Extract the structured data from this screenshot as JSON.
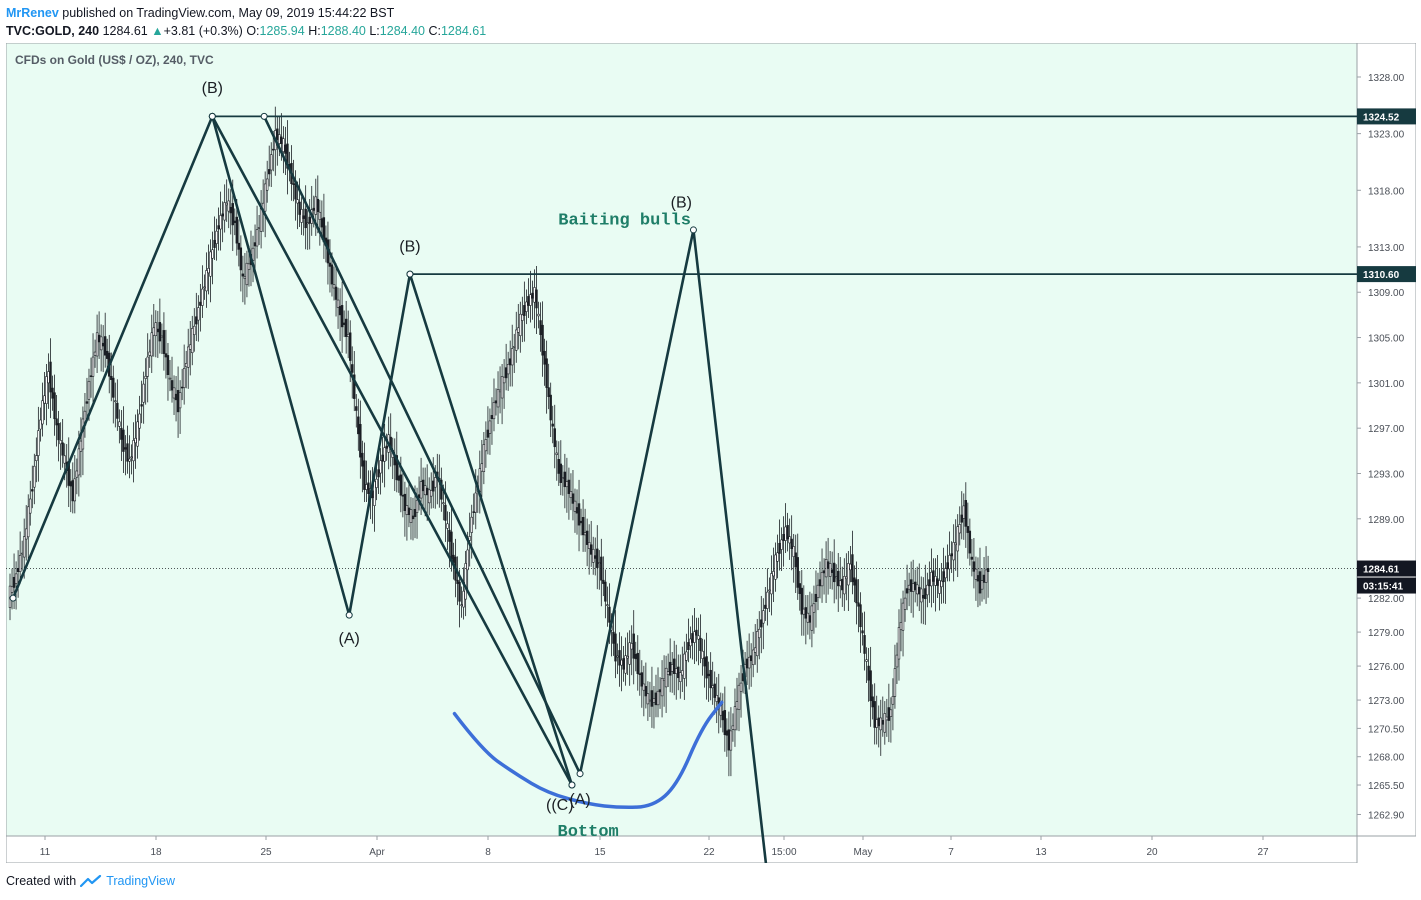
{
  "header": {
    "author": "MrRenev",
    "published": "published on TradingView.com, May 09, 2019 15:44:22 BST",
    "symbol": "TVC:GOLD, 240",
    "last": "1284.61",
    "change_arrow": "▲",
    "change": "+3.81 (+0.3%)",
    "o_label": "O:",
    "o_val": "1285.94",
    "h_label": "H:",
    "h_val": "1288.40",
    "l_label": "L:",
    "l_val": "1284.40",
    "c_label": "C:",
    "c_val": "1284.61"
  },
  "footer": {
    "created": "Created with",
    "brand": "TradingView"
  },
  "colors": {
    "background": "#e9fcf3",
    "line": "#163a40",
    "arc": "#3d6fd8",
    "annotation": "#1f7e68",
    "up": "#26a69a"
  },
  "chart_data": {
    "type": "candlestick",
    "title": "CFDs on Gold (US$ / OZ), 240, TVC",
    "x_ticks": [
      "11",
      "18",
      "25",
      "Apr",
      "8",
      "15",
      "22",
      "15:00",
      "May",
      "7",
      "13",
      "20",
      "27"
    ],
    "y_ticks": [
      "1328.00",
      "1323.00",
      "1318.00",
      "1313.00",
      "1309.00",
      "1305.00",
      "1301.00",
      "1297.00",
      "1293.00",
      "1289.00",
      "1282.00",
      "1279.00",
      "1276.00",
      "1273.00",
      "1270.50",
      "1268.00",
      "1265.50",
      "1262.90"
    ],
    "ylim": [
      1261,
      1331
    ],
    "price_labels": [
      {
        "label": "1324.52",
        "value": 1324.52,
        "style": "line"
      },
      {
        "label": "1310.60",
        "value": 1310.6,
        "style": "line"
      },
      {
        "label": "1284.61",
        "value": 1284.61,
        "style": "last"
      }
    ],
    "countdown": "03:15:41",
    "close_series": [
      1284,
      1287,
      1292,
      1298,
      1302,
      1297,
      1294,
      1291,
      1296,
      1301,
      1305,
      1304,
      1300,
      1296,
      1294,
      1297,
      1302,
      1306,
      1305,
      1301,
      1299,
      1303,
      1306,
      1309,
      1312,
      1315,
      1317,
      1315,
      1310,
      1312,
      1315,
      1319,
      1323,
      1322,
      1319,
      1316,
      1315,
      1317,
      1314,
      1310,
      1307,
      1305,
      1298,
      1292,
      1291,
      1294,
      1296,
      1293,
      1290,
      1289,
      1292,
      1291,
      1293,
      1289,
      1285,
      1281,
      1288,
      1292,
      1296,
      1299,
      1301,
      1303,
      1306,
      1308,
      1309,
      1304,
      1298,
      1293,
      1292,
      1290,
      1288,
      1286,
      1285,
      1281,
      1277,
      1276,
      1278,
      1275,
      1273,
      1273,
      1275,
      1276,
      1275,
      1278,
      1279,
      1276,
      1274,
      1272,
      1269,
      1273,
      1276,
      1277,
      1280,
      1283,
      1286,
      1288,
      1286,
      1281,
      1280,
      1283,
      1285,
      1284,
      1283,
      1285,
      1281,
      1276,
      1271,
      1271,
      1272,
      1279,
      1283,
      1283,
      1282,
      1284,
      1283,
      1285,
      1287,
      1290,
      1285,
      1283,
      1284.61
    ],
    "wave_lines": [
      {
        "points": [
          [
            0,
            1282
          ],
          [
            24.6,
            1324.52
          ],
          [
            41.5,
            1280.5
          ],
          [
            49,
            1310.6
          ],
          [
            69,
            1265.5
          ]
        ]
      },
      {
        "points": [
          [
            24.6,
            1324.52
          ],
          [
            69,
            1265.5
          ]
        ]
      },
      {
        "points": [
          [
            31,
            1324.52
          ],
          [
            70,
            1266.5
          ],
          [
            84,
            1314.5
          ],
          [
            94,
            1252
          ]
        ]
      }
    ],
    "horizontal_lines": [
      {
        "from_x": 24.6,
        "value": 1324.52
      },
      {
        "from_x": 49,
        "value": 1310.6
      }
    ],
    "annotations": [
      {
        "text": "(B)",
        "x": 24.6,
        "y": 1326.6,
        "style": "wave"
      },
      {
        "text": "(B)",
        "x": 49,
        "y": 1312.6,
        "style": "wave"
      },
      {
        "text": "(A)",
        "x": 41.5,
        "y": 1278,
        "style": "wave"
      },
      {
        "text": "(A)",
        "x": 70,
        "y": 1263.8,
        "style": "wave"
      },
      {
        "text": "((C)",
        "x": 67.5,
        "y": 1263.3,
        "style": "wave"
      },
      {
        "text": "(B)",
        "x": 82.5,
        "y": 1316.5,
        "style": "wave"
      },
      {
        "text": "Baiting bulls",
        "x": 75.5,
        "y": 1315,
        "style": "note"
      },
      {
        "text": "Bottom",
        "x": 71,
        "y": 1261,
        "style": "note"
      }
    ],
    "bottom_arc": [
      [
        54.5,
        1271.8
      ],
      [
        58,
        1268.5
      ],
      [
        62,
        1266.5
      ],
      [
        66,
        1264.8
      ],
      [
        71,
        1263.8
      ],
      [
        75,
        1263.5
      ],
      [
        79,
        1263.6
      ],
      [
        82,
        1265.5
      ],
      [
        85,
        1270.5
      ],
      [
        87.5,
        1272.8
      ]
    ]
  }
}
